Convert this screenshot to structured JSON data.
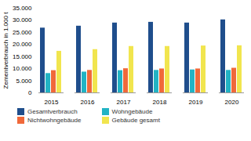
{
  "chart_data": {
    "type": "bar",
    "y_label": "Zementverbrauch in 1.000 t",
    "categories": [
      "2015",
      "2016",
      "2017",
      "2018",
      "2019",
      "2020"
    ],
    "series": [
      {
        "name": "Gesamtverbrauch",
        "color": "#1f4e8c",
        "values": [
          26800,
          27600,
          28900,
          29200,
          28900,
          30200
        ]
      },
      {
        "name": "Wohngebäude",
        "color": "#22b3c4",
        "values": [
          8000,
          8600,
          9200,
          9300,
          9500,
          9300
        ]
      },
      {
        "name": "Nichtwohngebäude",
        "color": "#f0693a",
        "values": [
          9200,
          9300,
          10000,
          9900,
          9900,
          10200
        ]
      },
      {
        "name": "Gebäude gesamt",
        "color": "#f1e54e",
        "values": [
          17200,
          17900,
          19200,
          19200,
          19400,
          19500
        ]
      }
    ],
    "ylim": [
      0,
      35000
    ],
    "yticks": [
      0,
      {
        "value": 5000,
        "label": "5.000"
      },
      {
        "value": 10000,
        "label": "10.000"
      },
      {
        "value": 15000,
        "label": "15.000"
      },
      {
        "value": 20000,
        "label": "20.000"
      },
      {
        "value": 25000,
        "label": "25.000"
      },
      {
        "value": 30000,
        "label": "30.000"
      },
      {
        "value": 35000,
        "label": "35.000"
      }
    ],
    "grid": false,
    "legend": "bottom"
  }
}
